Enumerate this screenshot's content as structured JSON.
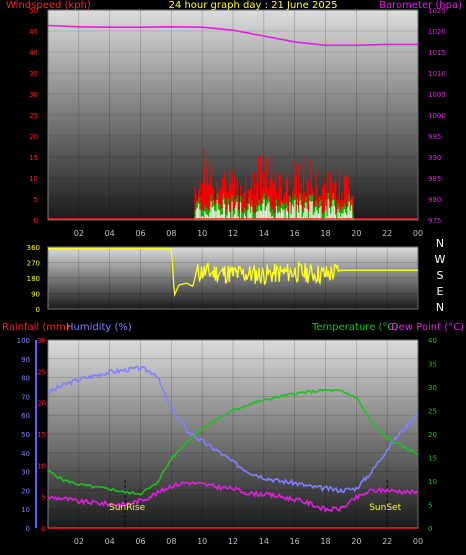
{
  "colors": {
    "wind": "#ff2020",
    "windGust": "#ff0000",
    "windAvg": "#ffffff",
    "windFill": "#00c000",
    "baro": "#e020e0",
    "rain": "#ff2020",
    "humidity": "#8080ff",
    "temperature": "#20c020",
    "dewpoint": "#e020e0",
    "direction": "#ffff20",
    "background": "#000000",
    "tickLabel": "#c0c0c0"
  },
  "chart_data": [
    {
      "type": "line",
      "title": "24 hour graph day : 21 June 2025",
      "left_axis_label": "Windspeed (kph)",
      "right_axis_label": "Barometer (hpa)",
      "x_ticks": [
        "02",
        "04",
        "06",
        "08",
        "10",
        "12",
        "14",
        "16",
        "18",
        "20",
        "22",
        "00"
      ],
      "windspeed": {
        "ylim": [
          0,
          50
        ],
        "y_ticks": [
          "0",
          "5",
          "10",
          "15",
          "20",
          "25",
          "30",
          "35",
          "40",
          "45",
          "50"
        ],
        "active_hours": [
          9.5,
          19.8
        ],
        "gust_typical_range": [
          4,
          12
        ],
        "gust_peak": 17,
        "average_typical_range": [
          0,
          5
        ]
      },
      "barometer": {
        "ylim": [
          975,
          1025
        ],
        "y_ticks": [
          "975",
          "980",
          "985",
          "990",
          "995",
          "1000",
          "1005",
          "1010",
          "1015",
          "1020",
          "1025"
        ],
        "series": {
          "name": "Barometer",
          "x": [
            0,
            2,
            4,
            6,
            8,
            10,
            12,
            14,
            16,
            18,
            20,
            22,
            24
          ],
          "y": [
            1021.3,
            1021.0,
            1020.9,
            1020.9,
            1021.0,
            1020.9,
            1020.2,
            1018.8,
            1017.4,
            1016.6,
            1016.6,
            1016.8,
            1016.8
          ]
        }
      }
    },
    {
      "type": "line",
      "title": "",
      "right_axis_labels": [
        "N",
        "W",
        "S",
        "E",
        "N"
      ],
      "y_ticks": [
        "0",
        "90",
        "180",
        "270",
        "360"
      ],
      "ylim": [
        0,
        360
      ],
      "series": {
        "name": "Wind direction",
        "x": [
          0,
          2,
          4,
          6,
          8,
          8.2,
          8.5,
          9,
          9.4,
          9.6,
          10,
          12,
          14,
          16,
          18,
          18.5,
          19,
          20,
          22,
          24
        ],
        "y": [
          350,
          350,
          350,
          350,
          350,
          80,
          140,
          150,
          130,
          210,
          215,
          205,
          200,
          215,
          200,
          210,
          225,
          225,
          225,
          225
        ]
      }
    },
    {
      "type": "line",
      "title": "",
      "labels": {
        "rainfall": "Rainfall (mm)",
        "humidity": "Humidity (%)",
        "temperature": "Temperature (°C)",
        "dewpoint": "Dew Point (°C)",
        "sunrise": "SunRise",
        "sunset": "SunSet"
      },
      "sunrise_hour": 5.0,
      "sunset_hour": 22.0,
      "x_ticks": [
        "02",
        "04",
        "06",
        "08",
        "10",
        "12",
        "14",
        "16",
        "18",
        "20",
        "22",
        "00"
      ],
      "humidity_axis": {
        "ylim": [
          0,
          100
        ],
        "y_ticks": [
          "0",
          "10",
          "20",
          "30",
          "40",
          "50",
          "60",
          "70",
          "80",
          "90",
          "100"
        ]
      },
      "rain_axis": {
        "ylim": [
          0,
          30
        ],
        "y_ticks": [
          "0",
          "5",
          "10",
          "15",
          "20",
          "25",
          "30"
        ]
      },
      "temp_axis": {
        "ylim": [
          0,
          40
        ],
        "y_ticks": [
          "0",
          "5",
          "10",
          "15",
          "20",
          "25",
          "30",
          "35",
          "40"
        ]
      },
      "series": [
        {
          "name": "Humidity",
          "x": [
            0,
            1,
            2,
            3,
            4,
            5,
            6,
            7,
            8,
            9,
            10,
            11,
            12,
            13,
            14,
            15,
            16,
            17,
            18,
            19,
            20,
            21,
            22,
            23,
            24
          ],
          "y": [
            72,
            76,
            79,
            81,
            83,
            84,
            85,
            82,
            63,
            52,
            46,
            41,
            35,
            30,
            27,
            25,
            24,
            22,
            21,
            20,
            21,
            30,
            42,
            52,
            61
          ]
        },
        {
          "name": "Temperature",
          "x": [
            0,
            1,
            2,
            3,
            4,
            5,
            6,
            7,
            8,
            9,
            10,
            11,
            12,
            13,
            14,
            15,
            16,
            17,
            18,
            19,
            20,
            21,
            22,
            23,
            24
          ],
          "y": [
            12.2,
            10.2,
            9.3,
            8.7,
            8.3,
            7.6,
            7.3,
            9.3,
            14.7,
            18.3,
            21.2,
            23.2,
            25.0,
            26.3,
            27.2,
            27.9,
            28.6,
            29.0,
            29.3,
            29.1,
            27.8,
            22.4,
            19.2,
            17.3,
            15.7
          ]
        },
        {
          "name": "Dew Point",
          "x": [
            0,
            1,
            2,
            3,
            4,
            5,
            6,
            7,
            8,
            9,
            10,
            11,
            12,
            13,
            14,
            15,
            16,
            17,
            18,
            19,
            20,
            21,
            22,
            23,
            24
          ],
          "y": [
            6.5,
            6.3,
            5.6,
            5.4,
            5.1,
            5.0,
            5.8,
            7.3,
            9.0,
            9.7,
            9.3,
            8.7,
            8.4,
            7.4,
            7.2,
            6.7,
            6.1,
            5.2,
            3.9,
            4.1,
            6.4,
            8.0,
            8.0,
            7.8,
            7.5
          ]
        },
        {
          "name": "Rainfall",
          "x": [
            0,
            24
          ],
          "y": [
            0,
            0
          ]
        }
      ]
    }
  ]
}
